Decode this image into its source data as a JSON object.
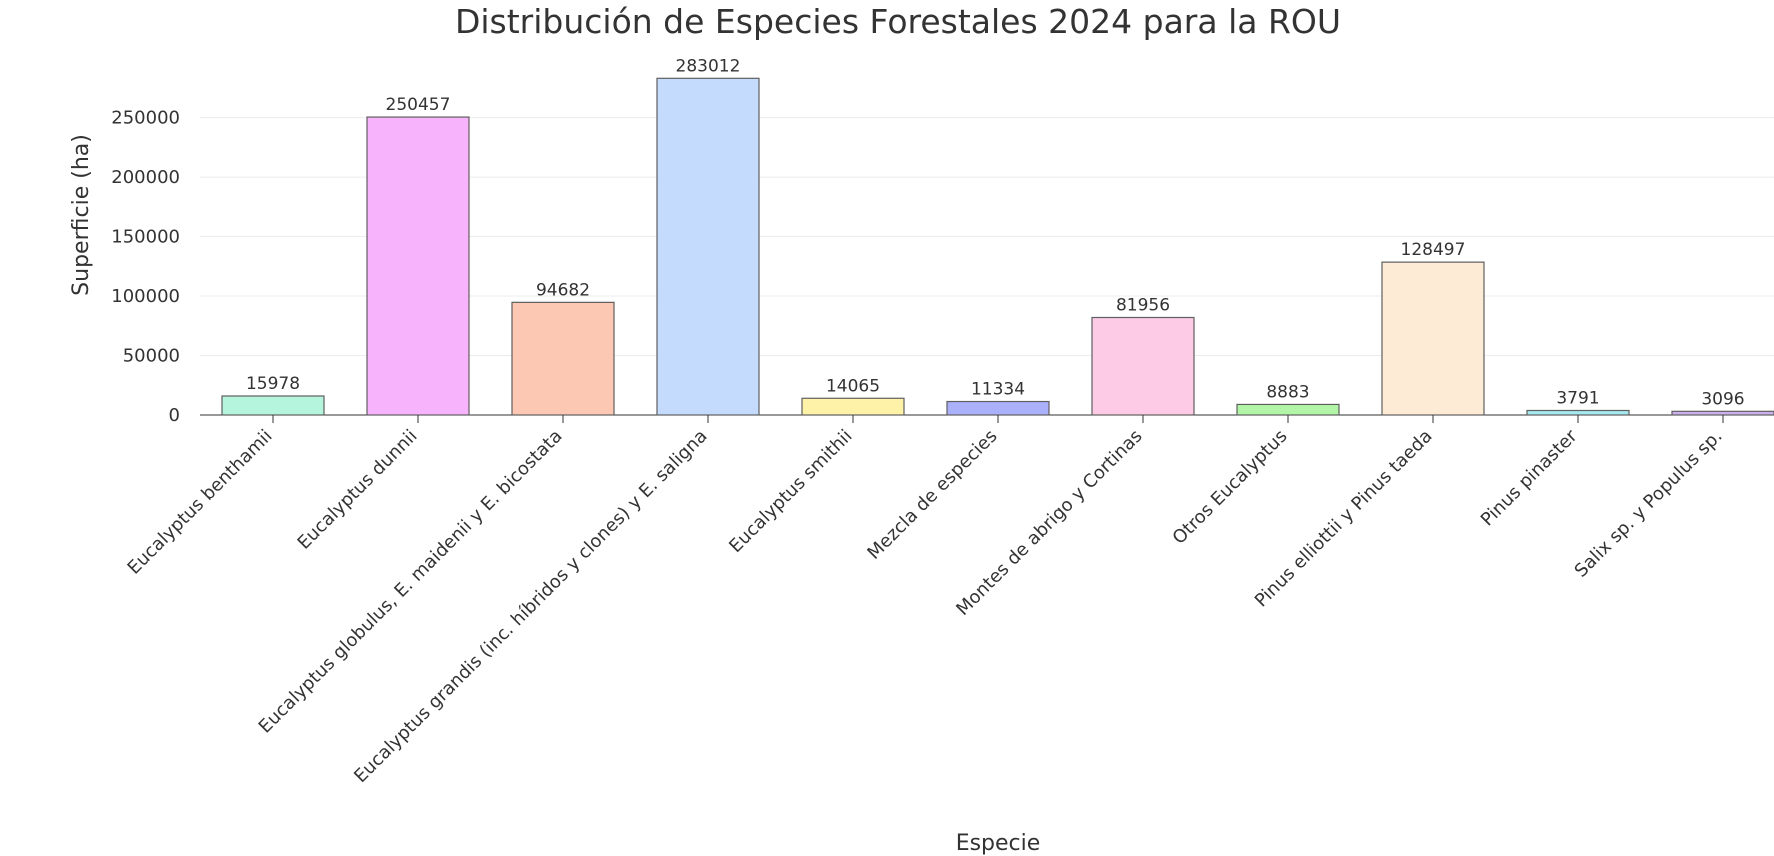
{
  "chart_data": {
    "type": "bar",
    "title": "Distribución de Especies Forestales 2024 para la ROU",
    "xlabel": "Especie",
    "ylabel": "Superficie (ha)",
    "ylim": [
      0,
      290000
    ],
    "yticks": [
      0,
      50000,
      100000,
      150000,
      200000,
      250000
    ],
    "grid": true,
    "categories": [
      "Eucalyptus benthamii",
      "Eucalyptus dunnii",
      "Eucalyptus globulus, E. maidenii y E. bicostata",
      "Eucalyptus grandis (inc. híbridos y clones) y E. saligna",
      "Eucalyptus smithii",
      "Mezcla de especies",
      "Montes de abrigo y Cortinas",
      "Otros Eucalyptus",
      "Pinus elliottii y Pinus taeda",
      "Pinus pinaster",
      "Salix sp. y Populus sp."
    ],
    "values": [
      15978,
      250457,
      94682,
      283012,
      14065,
      11334,
      81956,
      8883,
      128497,
      3791,
      3096
    ],
    "data_labels": [
      "15978",
      "250457",
      "94682",
      "283012",
      "14065",
      "11334",
      "81956",
      "8883",
      "128497",
      "3791",
      "3096"
    ],
    "colors": [
      "#b5f5dd",
      "#f7b3fb",
      "#fcc8b4",
      "#c5dbfd",
      "#fdf2a8",
      "#aab0f9",
      "#fdcbe6",
      "#b3f5a7",
      "#fdebd5",
      "#a6e8ef",
      "#cbb0ed"
    ]
  }
}
